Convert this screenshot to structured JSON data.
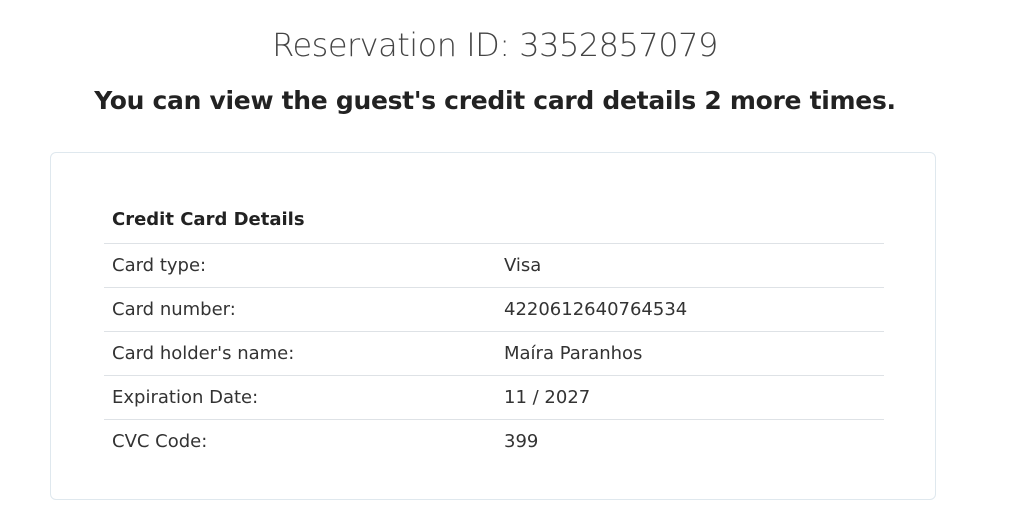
{
  "header": {
    "title": "Reservation ID: 3352857079",
    "subtitle": "You can view the guest's credit card details 2 more times."
  },
  "card": {
    "heading": "Credit Card Details",
    "rows": [
      {
        "label": "Card type:",
        "value": "Visa"
      },
      {
        "label": "Card number:",
        "value": "4220612640764534"
      },
      {
        "label": "Card holder's name:",
        "value": "Maíra Paranhos"
      },
      {
        "label": "Expiration Date:",
        "value": "11 / 2027"
      },
      {
        "label": "CVC Code:",
        "value": "399"
      }
    ]
  }
}
